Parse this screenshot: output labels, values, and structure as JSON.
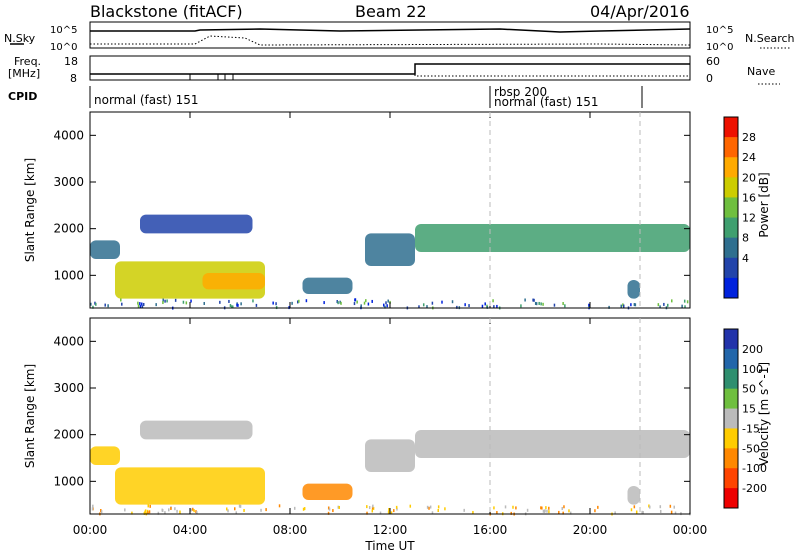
{
  "header": {
    "station": "Blackstone (fitACF)",
    "beam": "Beam 22",
    "date": "04/Apr/2016"
  },
  "top_panels": {
    "nsky_label": "N.Sky",
    "nsearch_label": "N.Search",
    "nsky_tick_top": "10^5",
    "nsky_tick_bottom": "10^0",
    "nsearch_tick_top": "10^5",
    "nsearch_tick_bottom": "10^0",
    "freq_label_1": "Freq.",
    "freq_label_2": "[MHz]",
    "freq_tick_top": "18",
    "freq_tick_bottom": "8",
    "nave_label": "Nave",
    "nave_tick_top": "60",
    "nave_tick_bottom": "0",
    "cpid_label": "CPID",
    "cpid_segments": [
      {
        "label": "normal (fast) 151",
        "start_hour": 0.0
      },
      {
        "label": "rbsp 200",
        "start_hour": 16.0
      },
      {
        "label": "normal (fast) 151",
        "start_hour": 16.0
      }
    ],
    "freq_step_hour": 13.0
  },
  "x_axis": {
    "label": "Time UT",
    "ticks": [
      "00:00",
      "04:00",
      "08:00",
      "12:00",
      "16:00",
      "20:00",
      "00:00"
    ],
    "tick_hours": [
      0,
      4,
      8,
      12,
      16,
      20,
      24
    ]
  },
  "y_axis": {
    "label": "Slant Range [km]",
    "ticks": [
      "1000",
      "2000",
      "3000",
      "4000"
    ],
    "tick_values": [
      1000,
      2000,
      3000,
      4000
    ],
    "range": [
      300,
      4500
    ]
  },
  "colorbars": {
    "power": {
      "label": "Power [dB]",
      "ticks": [
        "28",
        "24",
        "20",
        "16",
        "12",
        "8",
        "4"
      ],
      "colors": [
        "#0022dd",
        "#2244aa",
        "#2f6f8f",
        "#3f9f6f",
        "#6fbf3f",
        "#cccc00",
        "#ffaa00",
        "#ff6600",
        "#ee1100"
      ]
    },
    "velocity": {
      "label": "Velocity [m s^-1]",
      "ticks": [
        "200",
        "100",
        "50",
        "15",
        "-15",
        "-50",
        "-100",
        "-200"
      ],
      "colors": [
        "#2233aa",
        "#2266aa",
        "#2f8f6f",
        "#6fbf3f",
        "#bbbbbb",
        "#ffcc00",
        "#ff8800",
        "#ff4400",
        "#ee0000"
      ]
    }
  },
  "chart_data": {
    "type": "heatmap",
    "title": "Blackstone (fitACF) Beam 22 04/Apr/2016",
    "xlabel": "Time UT",
    "ylabel": "Slant Range [km]",
    "xlim": [
      0,
      24
    ],
    "ylim": [
      300,
      4500
    ],
    "panels": [
      {
        "name": "Power [dB]",
        "echo_regions": [
          {
            "t_start": 0.0,
            "t_end": 1.2,
            "range_low": 1350,
            "range_high": 1750,
            "value": 10
          },
          {
            "t_start": 1.0,
            "t_end": 7.0,
            "range_low": 500,
            "range_high": 1300,
            "value": 18
          },
          {
            "t_start": 4.5,
            "t_end": 7.0,
            "range_low": 700,
            "range_high": 1050,
            "value": 24
          },
          {
            "t_start": 2.0,
            "t_end": 6.5,
            "range_low": 1900,
            "range_high": 2300,
            "value": 6
          },
          {
            "t_start": 8.5,
            "t_end": 10.5,
            "range_low": 600,
            "range_high": 950,
            "value": 8
          },
          {
            "t_start": 11.0,
            "t_end": 13.0,
            "range_low": 1200,
            "range_high": 1900,
            "value": 10
          },
          {
            "t_start": 13.0,
            "t_end": 24.0,
            "range_low": 1500,
            "range_high": 2100,
            "value": 12
          },
          {
            "t_start": 21.5,
            "t_end": 22.0,
            "range_low": 500,
            "range_high": 900,
            "value": 8
          }
        ]
      },
      {
        "name": "Velocity [m s^-1]",
        "echo_regions": [
          {
            "t_start": 0.0,
            "t_end": 1.2,
            "range_low": 1350,
            "range_high": 1750,
            "value": -40
          },
          {
            "t_start": 1.0,
            "t_end": 7.0,
            "range_low": 500,
            "range_high": 1300,
            "value": -40
          },
          {
            "t_start": 2.0,
            "t_end": 6.5,
            "range_low": 1900,
            "range_high": 2300,
            "value": 0
          },
          {
            "t_start": 8.5,
            "t_end": 10.5,
            "range_low": 600,
            "range_high": 950,
            "value": -60
          },
          {
            "t_start": 11.0,
            "t_end": 13.0,
            "range_low": 1200,
            "range_high": 1900,
            "value": 0
          },
          {
            "t_start": 13.0,
            "t_end": 24.0,
            "range_low": 1500,
            "range_high": 2100,
            "value": 0
          },
          {
            "t_start": 21.5,
            "t_end": 22.0,
            "range_low": 500,
            "range_high": 900,
            "value": 0
          }
        ]
      }
    ],
    "vertical_markers_hours": [
      16.0,
      22.0
    ]
  }
}
